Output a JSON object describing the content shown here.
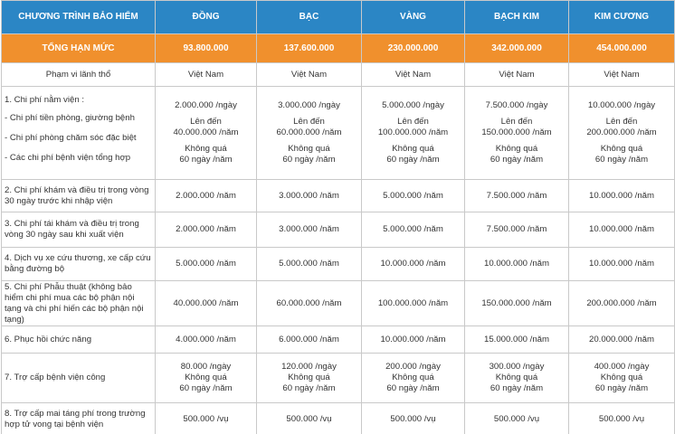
{
  "header": {
    "program": "CHƯƠNG TRÌNH BẢO HIỂM",
    "plans": [
      "ĐỒNG",
      "BẠC",
      "VÀNG",
      "BẠCH KIM",
      "KIM CƯƠNG"
    ]
  },
  "total": {
    "label": "TỔNG HẠN MỨC",
    "values": [
      "93.800.000",
      "137.600.000",
      "230.000.000",
      "342.000.000",
      "454.000.000"
    ]
  },
  "territory": {
    "label": "Phạm vi lãnh thổ",
    "values": [
      "Việt Nam",
      "Việt Nam",
      "Việt Nam",
      "Việt Nam",
      "Việt Nam"
    ]
  },
  "inpatient": {
    "title": "1. Chi phí nằm viện :",
    "sub_labels": [
      "- Chi phí tiền phòng, giường bệnh",
      "- Chi phí phòng chăm sóc đặc biệt",
      "- Các chi phí bệnh viện tổng hợp"
    ],
    "columns": [
      [
        "2.000.000 /ngày",
        "Lên đến",
        "40.000.000 /năm",
        "Không quá",
        "60 ngày /năm"
      ],
      [
        "3.000.000 /ngày",
        "Lên đến",
        "60.000.000 /năm",
        "Không quá",
        "60 ngày /năm"
      ],
      [
        "5.000.000 /ngày",
        "Lên đến",
        "100.000.000 /năm",
        "Không quá",
        "60 ngày /năm"
      ],
      [
        "7.500.000 /ngày",
        "Lên đến",
        "150.000.000 /năm",
        "Không quá",
        "60 ngày /năm"
      ],
      [
        "10.000.000 /ngày",
        "Lên đến",
        "200.000.000 /năm",
        "Không quá",
        "60 ngày /năm"
      ]
    ]
  },
  "rows": [
    {
      "label": "2.  Chi phí khám và điều trị trong vòng 30 ngày trước khi nhập viện",
      "values": [
        "2.000.000 /năm",
        "3.000.000 /năm",
        "5.000.000 /năm",
        "7.500.000 /năm",
        "10.000.000 /năm"
      ]
    },
    {
      "label": "3. Chi phí tái khám và điều trị trong vòng 30 ngày sau khi xuất viện",
      "values": [
        "2.000.000 /năm",
        "3.000.000 /năm",
        "5.000.000 /năm",
        "7.500.000 /năm",
        "10.000.000 /năm"
      ]
    },
    {
      "label": "4. Dịch vụ xe cứu thương, xe cấp cứu bằng đường bộ",
      "values": [
        "5.000.000 /năm",
        "5.000.000 /năm",
        "10.000.000 /năm",
        "10.000.000 /năm",
        "10.000.000 /năm"
      ]
    },
    {
      "label": "5. Chi phí Phẫu thuật (không bảo hiểm chi phí mua các bộ phận nội tạng và chi phí hiến các bộ phận nội tạng)",
      "values": [
        "40.000.000 /năm",
        "60.000.000 /năm",
        "100.000.000 /năm",
        "150.000.000 /năm",
        "200.000.000 /năm"
      ]
    },
    {
      "label": "6. Phục hồi chức năng",
      "values": [
        "4.000.000 /năm",
        "6.000.000 /năm",
        "10.000.000 /năm",
        "15.000.000 /năm",
        "20.000.000 /năm"
      ]
    }
  ],
  "public_hospital": {
    "label": "7. Trợ cấp bệnh viện công",
    "columns": [
      [
        "80.000 /ngày",
        "Không quá",
        "60 ngày /năm"
      ],
      [
        "120.000 /ngày",
        "Không quá",
        "60 ngày /năm"
      ],
      [
        "200.000 /ngày",
        "Không quá",
        "60 ngày /năm"
      ],
      [
        "300.000 /ngày",
        "Không quá",
        "60 ngày /năm"
      ],
      [
        "400.000 /ngày",
        "Không quá",
        "60 ngày /năm"
      ]
    ]
  },
  "funeral": {
    "label": "8. Trợ cấp mai táng phí trong trường hợp tử vong tại bệnh viện",
    "values": [
      "500.000 /vụ",
      "500.000 /vụ",
      "500.000 /vụ",
      "500.000 /vụ",
      "500.000 /vụ"
    ]
  },
  "colors": {
    "header_bg": "#2b86c5",
    "total_bg": "#f0902d",
    "border": "#c9c9c9"
  }
}
